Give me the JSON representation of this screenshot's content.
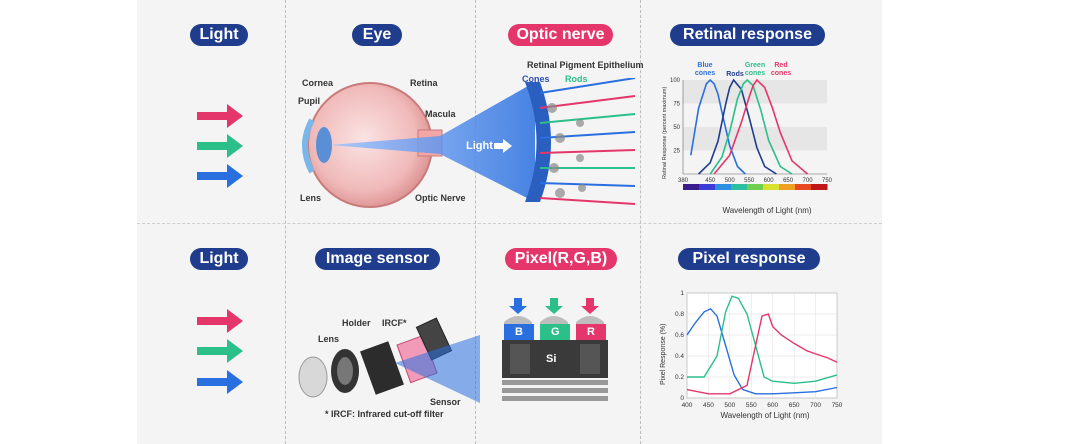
{
  "pills": {
    "light_top": "Light",
    "eye": "Eye",
    "optic_nerve": "Optic nerve",
    "retinal_response": "Retinal response",
    "light_bottom": "Light",
    "image_sensor": "Image sensor",
    "pixel": "Pixel(R,G,B)",
    "pixel_response": "Pixel response"
  },
  "eye_labels": {
    "cornea": "Cornea",
    "pupil": "Pupil",
    "lens": "Lens",
    "retina": "Retina",
    "macula": "Macula",
    "optic_nerve": "Optic Nerve"
  },
  "nerve_labels": {
    "rpe": "Retinal Pigment Epithelium",
    "cones": "Cones",
    "rods": "Rods",
    "light": "Light"
  },
  "sensor_labels": {
    "lens": "Lens",
    "holder": "Holder",
    "ircf": "IRCF*",
    "sensor": "Sensor",
    "footnote": "* IRCF: Infrared cut-off filter"
  },
  "pixel_labels": {
    "b": "B",
    "g": "G",
    "r": "R",
    "si": "Si"
  },
  "colors": {
    "navy": "#1f3d8c",
    "pink": "#e5366b",
    "green": "#2bbf8a",
    "blue": "#2a6fdf"
  },
  "chart_data": [
    {
      "type": "line",
      "title": "",
      "xlabel": "Wavelength of Light (nm)",
      "ylabel": "Retinal Response (percent maximum)",
      "x_ticks": [
        "380",
        "450",
        "500",
        "550",
        "600",
        "650",
        "700",
        "750"
      ],
      "y_ticks": [
        "25",
        "50",
        "75",
        "100"
      ],
      "xlim": [
        380,
        750
      ],
      "ylim": [
        0,
        100
      ],
      "legend": [
        "Blue cones",
        "Rods",
        "Green cones",
        "Red cones"
      ],
      "series": [
        {
          "name": "Blue cones",
          "color": "#2a6fdf",
          "x": [
            400,
            420,
            440,
            450,
            460,
            470,
            480,
            500,
            520,
            540
          ],
          "y": [
            20,
            70,
            96,
            100,
            96,
            85,
            66,
            30,
            8,
            0
          ]
        },
        {
          "name": "Rods",
          "color": "#1f3d8c",
          "x": [
            420,
            450,
            470,
            490,
            500,
            510,
            530,
            550,
            570,
            590,
            620
          ],
          "y": [
            0,
            12,
            35,
            75,
            92,
            100,
            90,
            60,
            28,
            8,
            0
          ]
        },
        {
          "name": "Green cones",
          "color": "#2bbf8a",
          "x": [
            450,
            480,
            500,
            520,
            535,
            545,
            560,
            580,
            600,
            630,
            660
          ],
          "y": [
            0,
            18,
            45,
            80,
            96,
            100,
            94,
            68,
            36,
            8,
            0
          ]
        },
        {
          "name": "Red cones",
          "color": "#e5366b",
          "x": [
            460,
            500,
            530,
            550,
            560,
            570,
            590,
            610,
            630,
            660,
            700
          ],
          "y": [
            0,
            20,
            55,
            82,
            94,
            100,
            92,
            70,
            44,
            14,
            0
          ]
        }
      ]
    },
    {
      "type": "line",
      "title": "",
      "xlabel": "Wavelength of Light (nm)",
      "ylabel": "Pixel Response (%)",
      "x_ticks": [
        "400",
        "450",
        "500",
        "550",
        "600",
        "650",
        "700",
        "750"
      ],
      "y_ticks": [
        "0",
        "0.2",
        "0.4",
        "0.6",
        "0.8",
        "1"
      ],
      "xlim": [
        400,
        750
      ],
      "ylim": [
        0,
        1
      ],
      "series": [
        {
          "name": "",
          "color": "#2a6fdf",
          "x": [
            400,
            420,
            440,
            455,
            470,
            490,
            510,
            530,
            560,
            600,
            650,
            700,
            750
          ],
          "y": [
            0.6,
            0.72,
            0.82,
            0.85,
            0.78,
            0.5,
            0.22,
            0.08,
            0.04,
            0.04,
            0.05,
            0.06,
            0.1
          ]
        },
        {
          "name": "",
          "color": "#2bbf8a",
          "x": [
            400,
            440,
            470,
            490,
            505,
            520,
            540,
            560,
            580,
            600,
            650,
            700,
            750
          ],
          "y": [
            0.2,
            0.2,
            0.4,
            0.82,
            0.97,
            0.95,
            0.8,
            0.5,
            0.2,
            0.16,
            0.14,
            0.16,
            0.22
          ]
        },
        {
          "name": "",
          "color": "#e5366b",
          "x": [
            400,
            450,
            500,
            540,
            560,
            575,
            590,
            600,
            620,
            650,
            680,
            700,
            730,
            750
          ],
          "y": [
            0.08,
            0.04,
            0.04,
            0.12,
            0.5,
            0.78,
            0.8,
            0.68,
            0.6,
            0.52,
            0.45,
            0.42,
            0.38,
            0.34
          ]
        }
      ]
    }
  ]
}
